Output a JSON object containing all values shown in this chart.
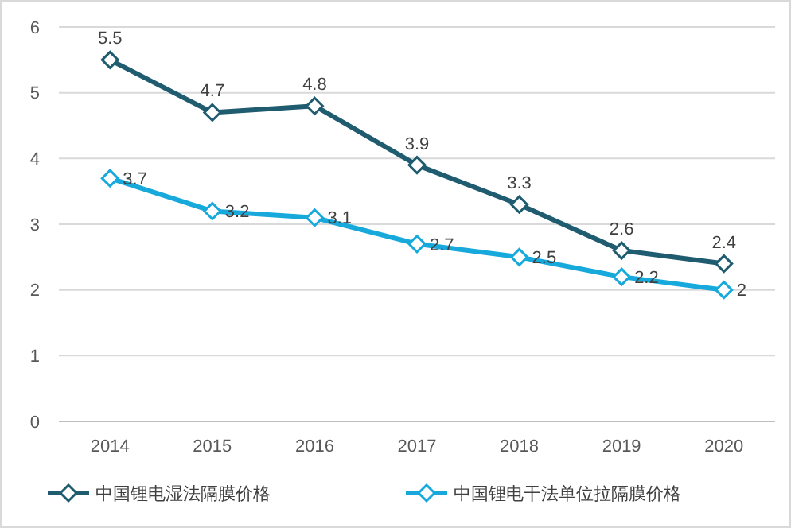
{
  "chart_data": {
    "type": "line",
    "categories": [
      "2014",
      "2015",
      "2016",
      "2017",
      "2018",
      "2019",
      "2020"
    ],
    "series": [
      {
        "name": "中国锂电湿法隔膜价格",
        "color": "#1f5c70",
        "values": [
          5.5,
          4.7,
          4.8,
          3.9,
          3.3,
          2.6,
          2.4
        ]
      },
      {
        "name": "中国锂电干法单位拉隔膜价格",
        "color": "#17a9dc",
        "values": [
          3.7,
          3.2,
          3.1,
          2.7,
          2.5,
          2.2,
          2
        ]
      }
    ],
    "ylim": [
      0,
      6
    ],
    "yticks": [
      0,
      1,
      2,
      3,
      4,
      5,
      6
    ],
    "grid": "y",
    "legend": "bottom",
    "marker": "diamond",
    "line_style": "solid",
    "data_labels": true
  }
}
